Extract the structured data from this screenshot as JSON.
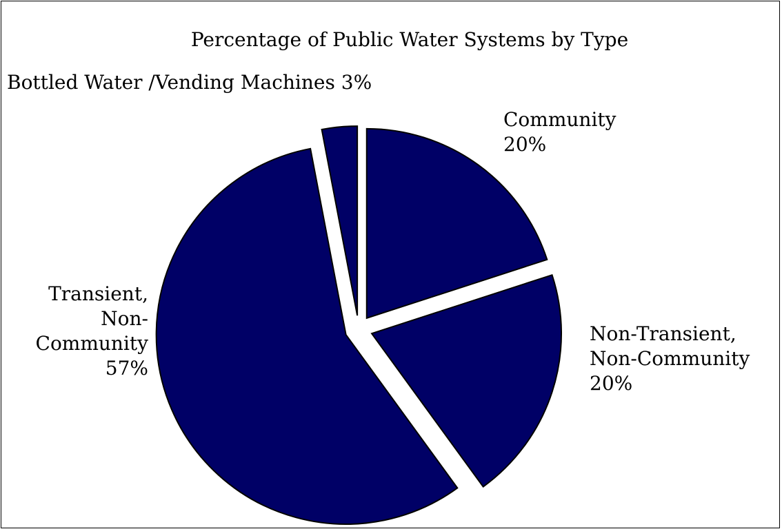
{
  "chart_data": {
    "type": "pie",
    "title": "Percentage of Public Water Systems by Type",
    "slices": [
      {
        "name": "Community",
        "value": 20,
        "percent_label": "20%",
        "label_lines": [
          "Community",
          "20%"
        ],
        "color": "#000066"
      },
      {
        "name": "Non-Transient, Non-Community",
        "value": 20,
        "percent_label": "20%",
        "label_lines": [
          "Non-Transient,",
          "Non-Community",
          "20%"
        ],
        "color": "#000066"
      },
      {
        "name": "Transient, Non-Community",
        "value": 57,
        "percent_label": "57%",
        "label_lines": [
          "Transient,",
          "Non-",
          "Community",
          "57%"
        ],
        "color": "#000066"
      },
      {
        "name": "Bottled Water /Vending Machines",
        "value": 3,
        "percent_label": "3%",
        "label_lines": [
          "Bottled Water /Vending Machines 3%"
        ],
        "color": "#000066"
      }
    ],
    "legend": "none",
    "exploded": true,
    "start_angle_deg": 0,
    "direction": "clockwise",
    "outline_color": "#000000",
    "background_color": "#ffffff"
  }
}
